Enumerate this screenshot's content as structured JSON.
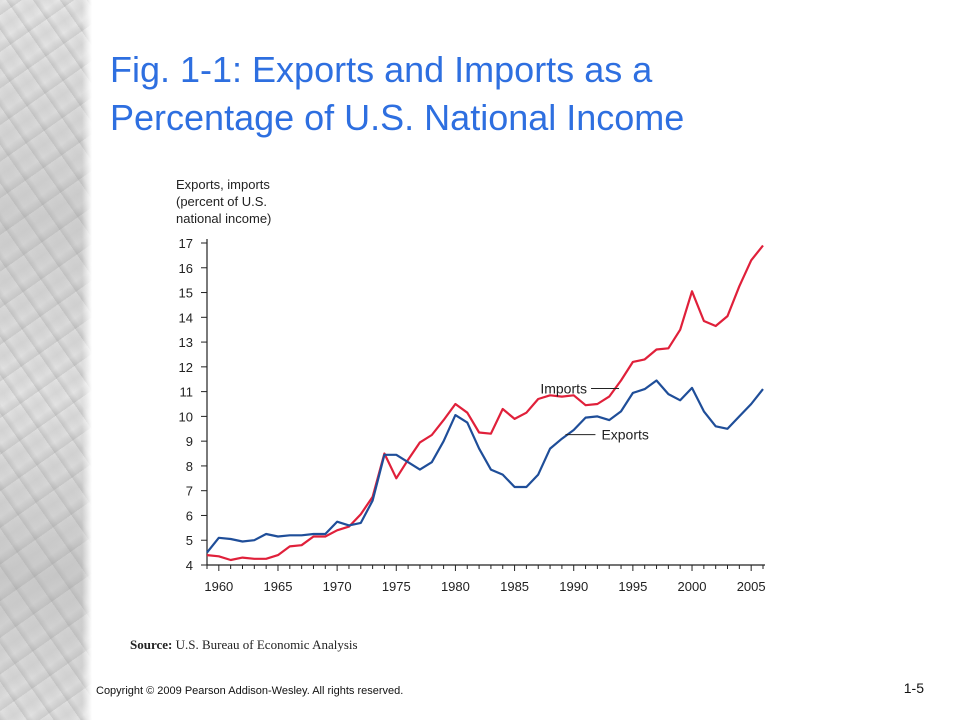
{
  "slide": {
    "title_line1": "Fig. 1-1: Exports and Imports as a",
    "title_line2": "Percentage of U.S. National Income",
    "source_label": "Source:",
    "source_text": "U.S. Bureau of Economic Analysis",
    "copyright": "Copyright © 2009 Pearson Addison-Wesley. All rights reserved.",
    "page_number": "1-5",
    "title_color": "#2e6fe0"
  },
  "chart_data": {
    "type": "line",
    "ylabel_lines": [
      "Exports, imports",
      "(percent of U.S.",
      "national income)"
    ],
    "ylim": [
      4,
      17
    ],
    "yticks": [
      4,
      5,
      6,
      7,
      8,
      9,
      10,
      11,
      12,
      13,
      14,
      15,
      16,
      17
    ],
    "xlim": [
      1959,
      2006
    ],
    "xticks": [
      1960,
      1965,
      1970,
      1975,
      1980,
      1985,
      1990,
      1995,
      2000,
      2005
    ],
    "x": [
      1959,
      1960,
      1961,
      1962,
      1963,
      1964,
      1965,
      1966,
      1967,
      1968,
      1969,
      1970,
      1971,
      1972,
      1973,
      1974,
      1975,
      1976,
      1977,
      1978,
      1979,
      1980,
      1981,
      1982,
      1983,
      1984,
      1985,
      1986,
      1987,
      1988,
      1989,
      1990,
      1991,
      1992,
      1993,
      1994,
      1995,
      1996,
      1997,
      1998,
      1999,
      2000,
      2001,
      2002,
      2003,
      2004,
      2005,
      2006
    ],
    "series": [
      {
        "name": "Imports",
        "color": "#e0203a",
        "values": [
          4.4,
          4.35,
          4.2,
          4.3,
          4.25,
          4.25,
          4.4,
          4.75,
          4.8,
          5.15,
          5.15,
          5.4,
          5.55,
          6.05,
          6.75,
          8.5,
          7.5,
          8.25,
          8.95,
          9.25,
          9.85,
          10.5,
          10.15,
          9.35,
          9.3,
          10.3,
          9.9,
          10.15,
          10.7,
          10.85,
          10.8,
          10.85,
          10.45,
          10.5,
          10.8,
          11.45,
          12.2,
          12.3,
          12.7,
          12.75,
          13.5,
          15.05,
          13.85,
          13.65,
          14.05,
          15.25,
          16.3,
          16.9
        ]
      },
      {
        "name": "Exports",
        "color": "#1f4e99",
        "values": [
          4.5,
          5.1,
          5.05,
          4.95,
          5.0,
          5.25,
          5.15,
          5.2,
          5.2,
          5.25,
          5.25,
          5.75,
          5.6,
          5.7,
          6.6,
          8.45,
          8.45,
          8.15,
          7.85,
          8.15,
          9.0,
          10.05,
          9.75,
          8.7,
          7.85,
          7.65,
          7.15,
          7.15,
          7.65,
          8.7,
          9.1,
          9.45,
          9.95,
          10.0,
          9.85,
          10.2,
          10.95,
          11.1,
          11.45,
          10.9,
          10.65,
          11.15,
          10.2,
          9.6,
          9.5,
          10.0,
          10.5,
          11.1
        ]
      }
    ],
    "annotations": [
      {
        "text": "Imports",
        "series": "Imports"
      },
      {
        "text": "Exports",
        "series": "Exports"
      }
    ]
  }
}
